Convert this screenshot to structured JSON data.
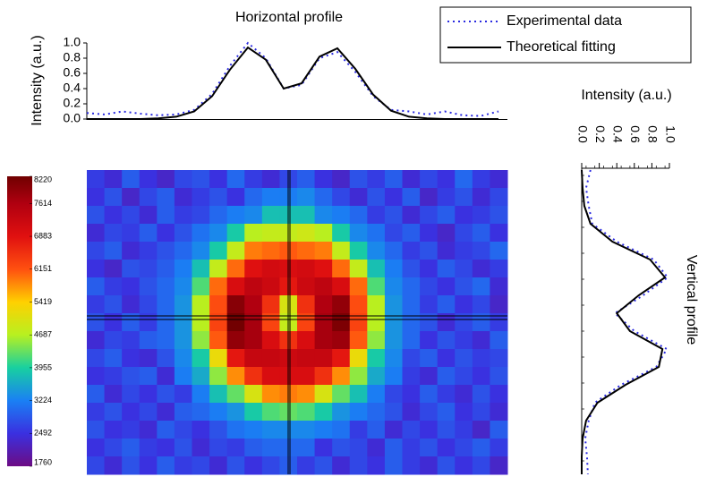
{
  "chart_data": [
    {
      "type": "line",
      "title": "Horizontal profile",
      "ylabel": "Intensity (a.u.)",
      "x": [
        0,
        2,
        4,
        6,
        8,
        10,
        12,
        14,
        16,
        18,
        20,
        22,
        24,
        26,
        28,
        30,
        32,
        34,
        36,
        38,
        40,
        42,
        44,
        46
      ],
      "xlim": [
        0,
        47
      ],
      "ylim": [
        0,
        1.0
      ],
      "yticks": [
        {
          "value": 0,
          "label": "0.0"
        },
        0.2,
        0.4,
        0.6,
        0.8,
        {
          "value": 1,
          "label": "1.0"
        }
      ],
      "legend": "upper right",
      "series": [
        {
          "name": "Experimental data",
          "color": "#2a2ae0",
          "style": "dotted",
          "values": [
            0.08,
            0.06,
            0.1,
            0.07,
            0.05,
            0.06,
            0.12,
            0.33,
            0.7,
            1.0,
            0.8,
            0.4,
            0.45,
            0.8,
            0.88,
            0.62,
            0.3,
            0.12,
            0.1,
            0.06,
            0.1,
            0.05,
            0.04,
            0.1
          ]
        },
        {
          "name": "Theoretical fitting",
          "color": "#000000",
          "style": "solid",
          "values": [
            0,
            0,
            0,
            0,
            0.01,
            0.03,
            0.1,
            0.3,
            0.65,
            0.94,
            0.78,
            0.4,
            0.47,
            0.82,
            0.93,
            0.66,
            0.32,
            0.11,
            0.03,
            0.01,
            0,
            0,
            0,
            0
          ]
        }
      ]
    },
    {
      "type": "line",
      "xlabel": "Intensity (a.u.)",
      "side_label": "Vertical profile",
      "y": [
        0,
        2,
        4,
        6,
        8,
        10,
        12,
        14,
        16,
        18,
        20,
        22,
        24,
        26,
        28,
        30,
        32,
        34
      ],
      "ylim": [
        0,
        34
      ],
      "xlim": [
        0,
        1.0
      ],
      "xticks": [
        {
          "value": 0,
          "label": "0.0"
        },
        0.2,
        0.4,
        0.6,
        0.8,
        {
          "value": 1,
          "label": "1.0"
        }
      ],
      "series": [
        {
          "name": "Experimental data",
          "color": "#2a2ae0",
          "style": "dotted",
          "values": [
            0.1,
            0.05,
            0.08,
            0.12,
            0.4,
            0.82,
            0.98,
            0.7,
            0.38,
            0.6,
            0.97,
            0.85,
            0.45,
            0.15,
            0.08,
            0.04,
            0.06,
            0.07
          ]
        },
        {
          "name": "Theoretical fitting",
          "color": "#000000",
          "style": "solid",
          "values": [
            0,
            0.01,
            0.03,
            0.1,
            0.35,
            0.78,
            0.95,
            0.65,
            0.4,
            0.55,
            0.92,
            0.88,
            0.5,
            0.18,
            0.05,
            0.01,
            0,
            0
          ]
        }
      ]
    },
    {
      "type": "heatmap",
      "zlim": [
        1760,
        8220
      ],
      "zticks": [
        1760,
        2492,
        3224,
        3955,
        4687,
        5419,
        6151,
        6883,
        7614,
        8220
      ],
      "colors": [
        "#6c0c84",
        "#3a30e0",
        "#1a80f4",
        "#18d0a0",
        "#b8f020",
        "#ffd000",
        "#ff5010",
        "#e01010",
        "#b00010",
        "#700000"
      ],
      "z": [
        [
          2600,
          2400,
          2900,
          2500,
          2300,
          2700,
          2800,
          2500,
          3000,
          2600,
          2400,
          2700,
          2900,
          2500,
          2300,
          2800,
          2600,
          2900,
          2400,
          2700,
          2500,
          3000,
          2600,
          2400
        ],
        [
          2500,
          2800,
          2300,
          2700,
          2900,
          2400,
          2600,
          2800,
          2500,
          3000,
          3200,
          3200,
          3300,
          3000,
          2700,
          2400,
          2800,
          2500,
          2900,
          2300,
          2600,
          2800,
          2400,
          2700
        ],
        [
          2800,
          2500,
          2700,
          2400,
          2900,
          2600,
          2700,
          3000,
          3200,
          3300,
          3800,
          3800,
          3800,
          3300,
          3200,
          3000,
          2600,
          2800,
          2400,
          2700,
          2900,
          2500,
          2600,
          2800
        ],
        [
          2400,
          2700,
          2600,
          2900,
          2500,
          2800,
          3100,
          3300,
          3900,
          4700,
          4800,
          4800,
          4900,
          4700,
          3900,
          3300,
          3100,
          2700,
          2900,
          2500,
          2300,
          2700,
          2900,
          2500
        ],
        [
          2700,
          2900,
          2400,
          2600,
          2800,
          3000,
          3300,
          3900,
          4800,
          5900,
          6000,
          6100,
          6000,
          5900,
          4800,
          3900,
          3300,
          3000,
          2600,
          2800,
          2400,
          2600,
          2700,
          3000
        ],
        [
          2500,
          2300,
          2800,
          2700,
          2900,
          3200,
          3800,
          4800,
          6000,
          6900,
          7100,
          7000,
          7100,
          6900,
          6000,
          4800,
          3800,
          3200,
          2800,
          2500,
          2900,
          2700,
          2400,
          2600
        ],
        [
          2900,
          2600,
          2500,
          2800,
          3000,
          3300,
          4200,
          6000,
          7000,
          7400,
          7200,
          6800,
          7200,
          7400,
          7000,
          6000,
          4200,
          3300,
          3000,
          2700,
          2500,
          2800,
          3000,
          2400
        ],
        [
          2600,
          2800,
          2400,
          2700,
          3000,
          3400,
          4700,
          6200,
          8000,
          7600,
          6500,
          5000,
          6500,
          7600,
          7900,
          6200,
          4700,
          3400,
          3000,
          2600,
          2900,
          2500,
          2700,
          2300
        ],
        [
          2800,
          2500,
          2900,
          2600,
          3000,
          3400,
          4700,
          6300,
          8200,
          7700,
          6300,
          4800,
          6300,
          7700,
          8100,
          6300,
          4700,
          3400,
          3000,
          2800,
          2400,
          2700,
          2900,
          2600
        ],
        [
          2400,
          2700,
          2600,
          2900,
          3000,
          3400,
          4500,
          6100,
          7900,
          7700,
          7000,
          6500,
          7000,
          7700,
          7800,
          6100,
          4500,
          3400,
          3000,
          2500,
          2800,
          2600,
          2400,
          2900
        ],
        [
          2700,
          2900,
          2500,
          2400,
          2800,
          3300,
          3900,
          5200,
          6800,
          7300,
          7300,
          7200,
          7300,
          7300,
          6800,
          5200,
          3900,
          3300,
          2700,
          2900,
          2500,
          2800,
          2600,
          2700
        ],
        [
          2500,
          2600,
          2800,
          2900,
          2400,
          3200,
          3600,
          4500,
          5800,
          6500,
          7000,
          7000,
          7000,
          6500,
          5800,
          4500,
          3600,
          3200,
          2600,
          2400,
          2900,
          2700,
          2500,
          2800
        ],
        [
          2900,
          2400,
          2700,
          2500,
          2800,
          2600,
          3200,
          3800,
          4300,
          5000,
          5800,
          5900,
          5800,
          5000,
          4300,
          3800,
          3200,
          2700,
          2500,
          2900,
          2600,
          2400,
          2800,
          2500
        ],
        [
          2600,
          2800,
          2500,
          2700,
          2400,
          2900,
          3000,
          3200,
          3400,
          3900,
          4200,
          4300,
          4200,
          3900,
          3400,
          3200,
          3000,
          2800,
          2400,
          2700,
          2900,
          2500,
          2700,
          2400
        ],
        [
          2800,
          2500,
          2600,
          2400,
          2900,
          2700,
          2500,
          2800,
          3100,
          3200,
          3300,
          3300,
          3300,
          3200,
          3100,
          2600,
          2900,
          2400,
          2700,
          2500,
          2800,
          2600,
          2300,
          2900
        ],
        [
          2500,
          2700,
          2900,
          2600,
          2500,
          2800,
          2400,
          2700,
          2600,
          2900,
          3000,
          3000,
          3000,
          2500,
          2800,
          2700,
          2400,
          2900,
          2600,
          2800,
          2500,
          2700,
          2900,
          2600
        ],
        [
          2700,
          2400,
          2800,
          2500,
          2900,
          2600,
          2700,
          2400,
          2800,
          2500,
          2700,
          2900,
          2600,
          2800,
          2400,
          2700,
          2500,
          2900,
          2600,
          2400,
          2800,
          2500,
          2700,
          2300
        ]
      ]
    }
  ]
}
